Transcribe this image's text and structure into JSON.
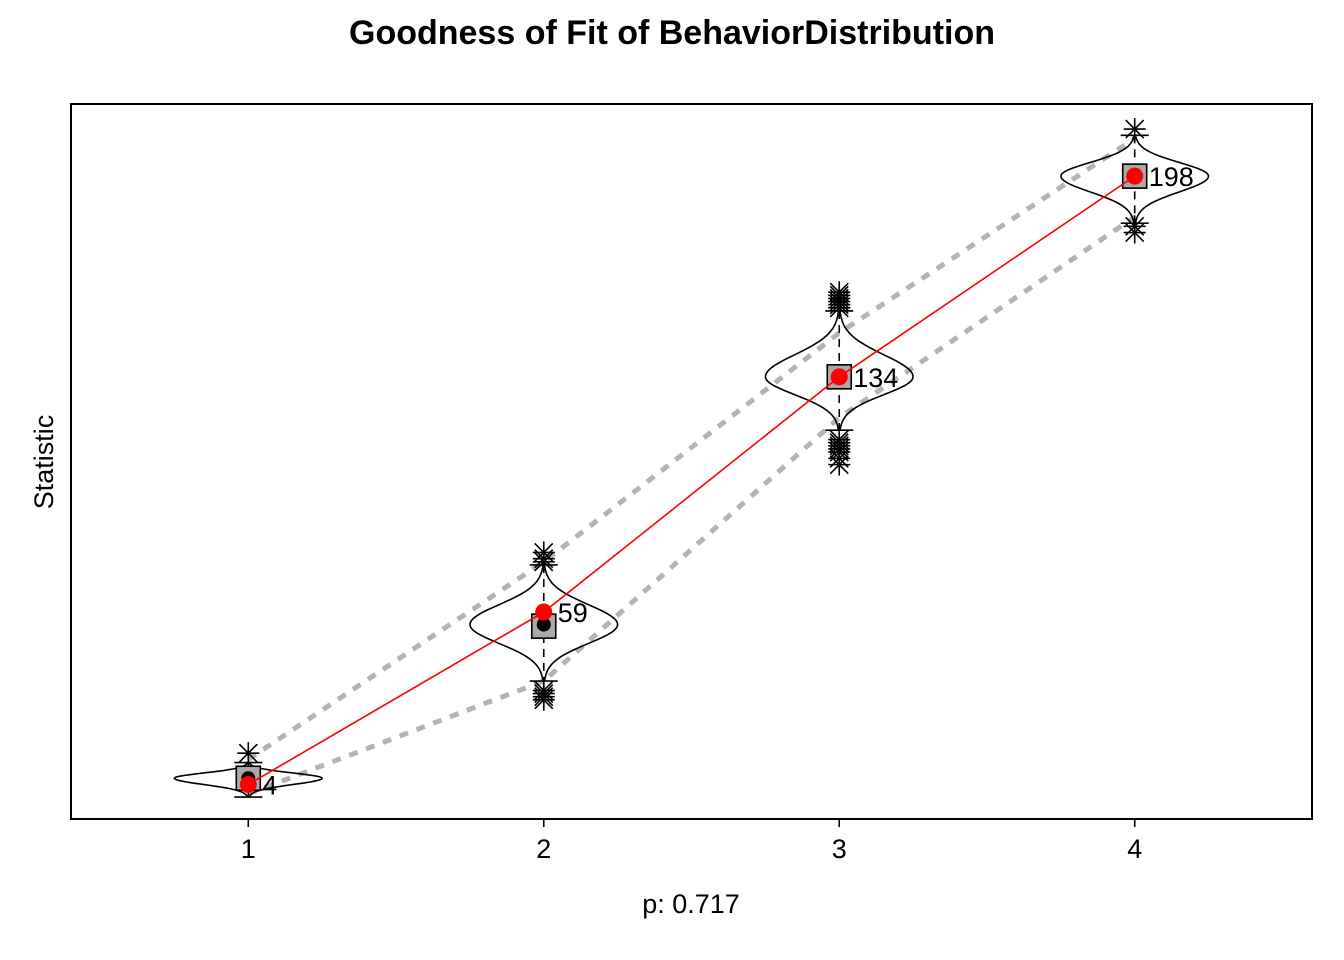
{
  "chart_data": {
    "type": "scatter",
    "title": "Goodness of Fit of BehaviorDistribution",
    "xlabel": "p: 0.717",
    "ylabel": "Statistic",
    "x_ticks": [
      "1",
      "2",
      "3",
      "4"
    ],
    "ylim": [
      -7,
      221
    ],
    "grid": false,
    "y_tick_labels_shown": false,
    "observed": {
      "color": "#ff0000",
      "x": [
        1,
        2,
        3,
        4
      ],
      "values": [
        4,
        59,
        134,
        198
      ],
      "labels": [
        "4",
        "59",
        "134",
        "198"
      ]
    },
    "simulated": [
      {
        "x": 1,
        "center": 6,
        "median": 6,
        "lower_whisker": 0,
        "upper_whisker": 11,
        "box_low": 5,
        "box_high": 7,
        "violin_width": 0.25,
        "outliers": [
          14
        ]
      },
      {
        "x": 2,
        "center": 55,
        "median": 55,
        "lower_whisker": 37,
        "upper_whisker": 74,
        "box_low": 51,
        "box_high": 58,
        "violin_width": 0.25,
        "outliers": [
          31,
          32,
          33,
          34,
          75,
          76,
          78
        ]
      },
      {
        "x": 3,
        "center": 134,
        "median": 134,
        "lower_whisker": 117,
        "upper_whisker": 155,
        "box_low": 131,
        "box_high": 137,
        "violin_width": 0.25,
        "outliers": [
          106,
          108,
          110,
          111,
          112,
          113,
          114,
          156,
          157,
          158,
          159,
          160,
          161
        ]
      },
      {
        "x": 4,
        "center": 198,
        "median": 198,
        "lower_whisker": 183,
        "upper_whisker": 211,
        "box_low": 196,
        "box_high": 200,
        "violin_width": 0.25,
        "outliers": [
          180,
          182,
          213
        ]
      }
    ],
    "bands": {
      "color": "#b3b3b3",
      "upper": [
        12,
        75,
        148,
        210
      ],
      "lower": [
        1,
        37,
        121,
        185
      ]
    }
  }
}
